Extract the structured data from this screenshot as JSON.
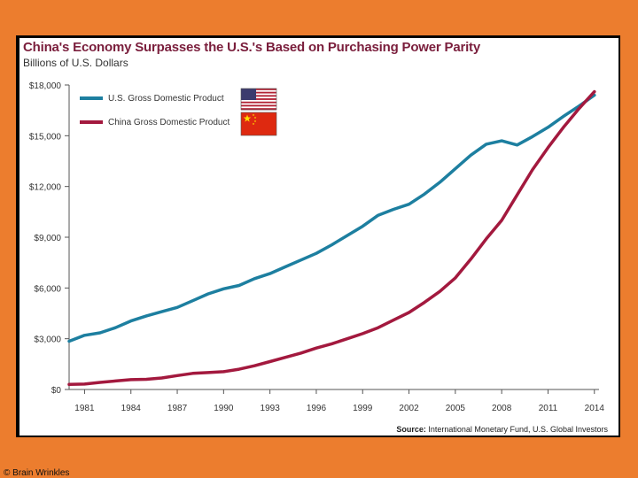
{
  "chart_data": {
    "type": "line",
    "title": "China's Economy Surpasses the U.S.'s Based on Purchasing Power Parity",
    "subtitle": "Billions of U.S. Dollars",
    "xlabel": "",
    "ylabel": "",
    "xlim": [
      1980,
      2014.3
    ],
    "ylim": [
      0,
      18000
    ],
    "x_ticks": [
      1981,
      1984,
      1987,
      1990,
      1993,
      1996,
      1999,
      2002,
      2005,
      2008,
      2011,
      2014
    ],
    "y_ticks": [
      0,
      3000,
      6000,
      9000,
      12000,
      15000,
      18000
    ],
    "y_tick_labels": [
      "$0",
      "$3,000",
      "$6,000",
      "$9,000",
      "$12,000",
      "$15,000",
      "$18,000"
    ],
    "grid": false,
    "legend_position": "top-left",
    "x": [
      1980,
      1981,
      1982,
      1983,
      1984,
      1985,
      1986,
      1987,
      1988,
      1989,
      1990,
      1991,
      1992,
      1993,
      1994,
      1995,
      1996,
      1997,
      1998,
      1999,
      2000,
      2001,
      2002,
      2003,
      2004,
      2005,
      2006,
      2007,
      2008,
      2009,
      2010,
      2011,
      2012,
      2013,
      2014
    ],
    "series": [
      {
        "name": "U.S. Gross Domestic Product",
        "color": "#1d7fa0",
        "flag": "us-flag",
        "values": [
          2850,
          3200,
          3350,
          3650,
          4050,
          4350,
          4600,
          4850,
          5250,
          5650,
          5950,
          6150,
          6550,
          6850,
          7250,
          7650,
          8050,
          8550,
          9100,
          9650,
          10300,
          10650,
          10950,
          11550,
          12250,
          13050,
          13850,
          14500,
          14700,
          14450,
          14950,
          15500,
          16150,
          16750,
          17400
        ]
      },
      {
        "name": "China Gross Domestic Product",
        "color": "#a3193e",
        "flag": "china-flag",
        "values": [
          300,
          320,
          420,
          500,
          580,
          600,
          680,
          820,
          950,
          1000,
          1050,
          1200,
          1400,
          1650,
          1900,
          2150,
          2450,
          2700,
          3000,
          3300,
          3650,
          4100,
          4550,
          5150,
          5800,
          6600,
          7700,
          8900,
          10000,
          11500,
          13000,
          14300,
          15500,
          16600,
          17600
        ]
      }
    ],
    "source_label": "Source:",
    "source_text": "International Monetary Fund, U.S. Global Investors"
  },
  "copyright": "© Brain Wrinkles"
}
